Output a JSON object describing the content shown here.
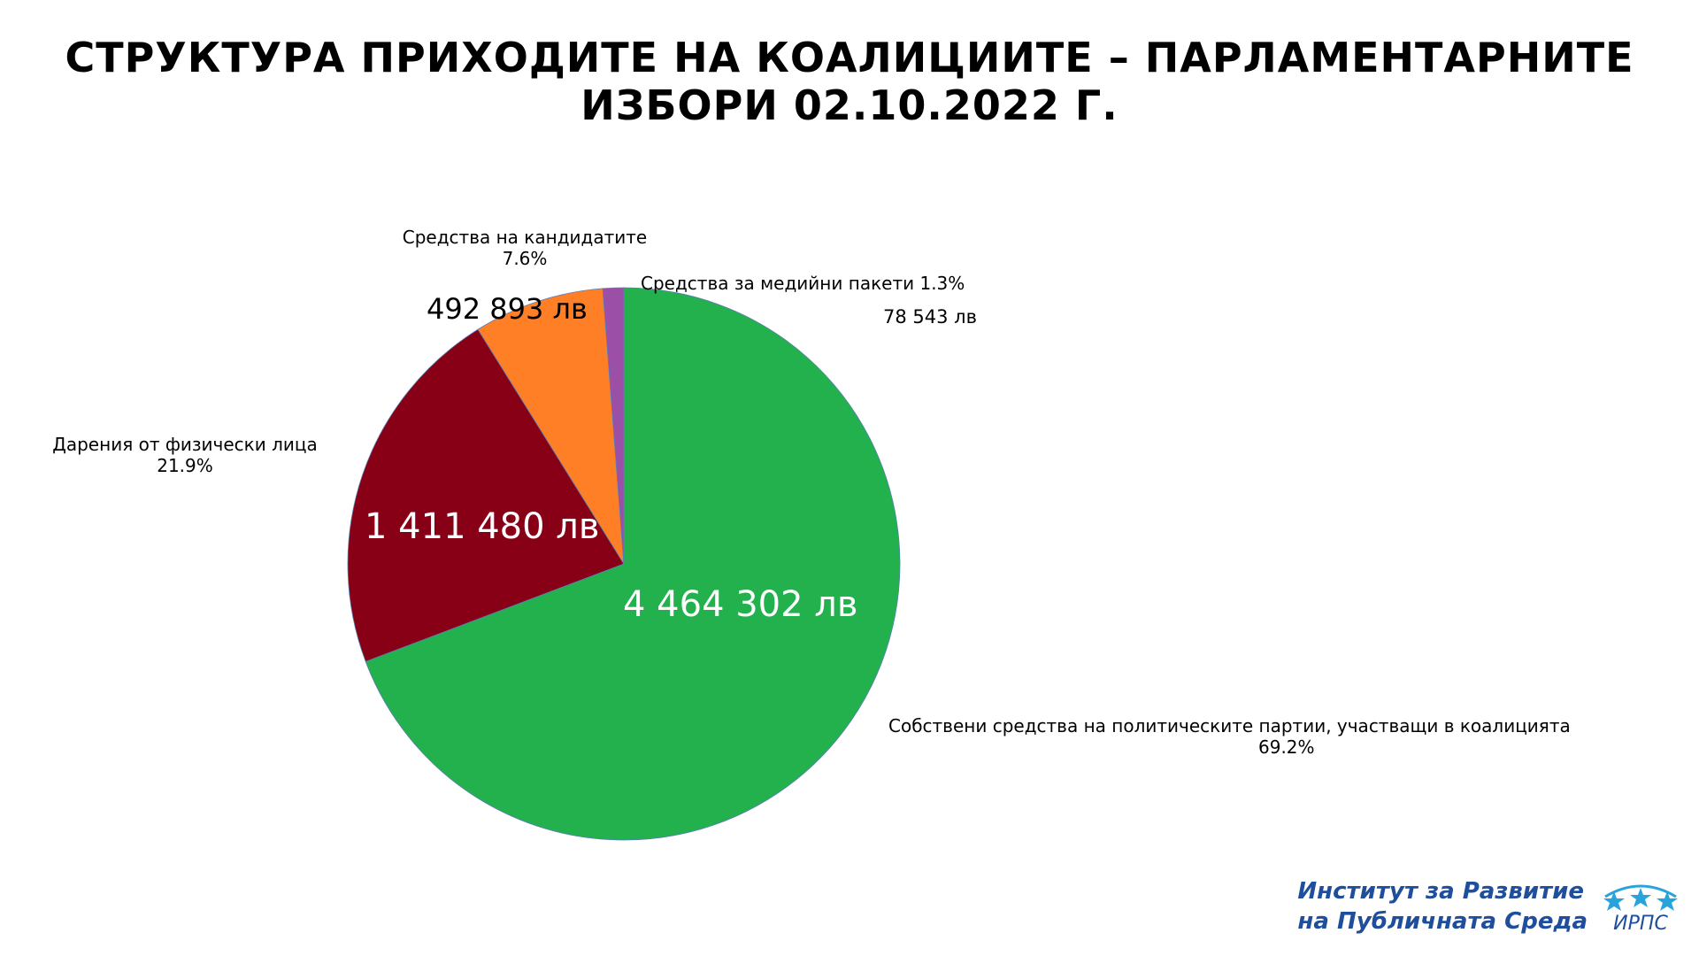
{
  "title": "СТРУКТУРА ПРИХОДИТЕ НА КОАЛИЦИИТЕ – ПАРЛАМЕНТАРНИТЕ ИЗБОРИ 02.10.2022 Г.",
  "chart_data": {
    "type": "pie",
    "title": "СТРУКТУРА ПРИХОДИТЕ НА КОАЛИЦИИТЕ – ПАРЛАМЕНТАРНИТЕ ИЗБОРИ 02.10.2022 Г.",
    "slices": [
      {
        "label": "Собствени средства на политическите партии, участващи в коалицията",
        "percent_label": "69.2%",
        "percent": 69.2,
        "value": 4464302,
        "value_label": "4 464 302 лв",
        "color": "#23b14d"
      },
      {
        "label": "Дарения от физически лица",
        "percent_label": "21.9%",
        "percent": 21.9,
        "value": 1411480,
        "value_label": "1 411 480 лв",
        "color": "#880015"
      },
      {
        "label": "Средства на кандидатите",
        "percent_label": "7.6%",
        "percent": 7.6,
        "value": 492893,
        "value_label": "492 893 лв",
        "color": "#ff7f27"
      },
      {
        "label": "Средства за медийни пакети",
        "percent_label": "1.3%",
        "percent": 1.3,
        "value": 78543,
        "value_label": "78 543 лв",
        "color": "#9b4fa6"
      }
    ]
  },
  "logo": {
    "line1": "Институт за Развитие",
    "line2": "на Публичната Среда",
    "abbr": "ИРПС",
    "color": "#1f4e9c",
    "star_color": "#29a3dc"
  }
}
